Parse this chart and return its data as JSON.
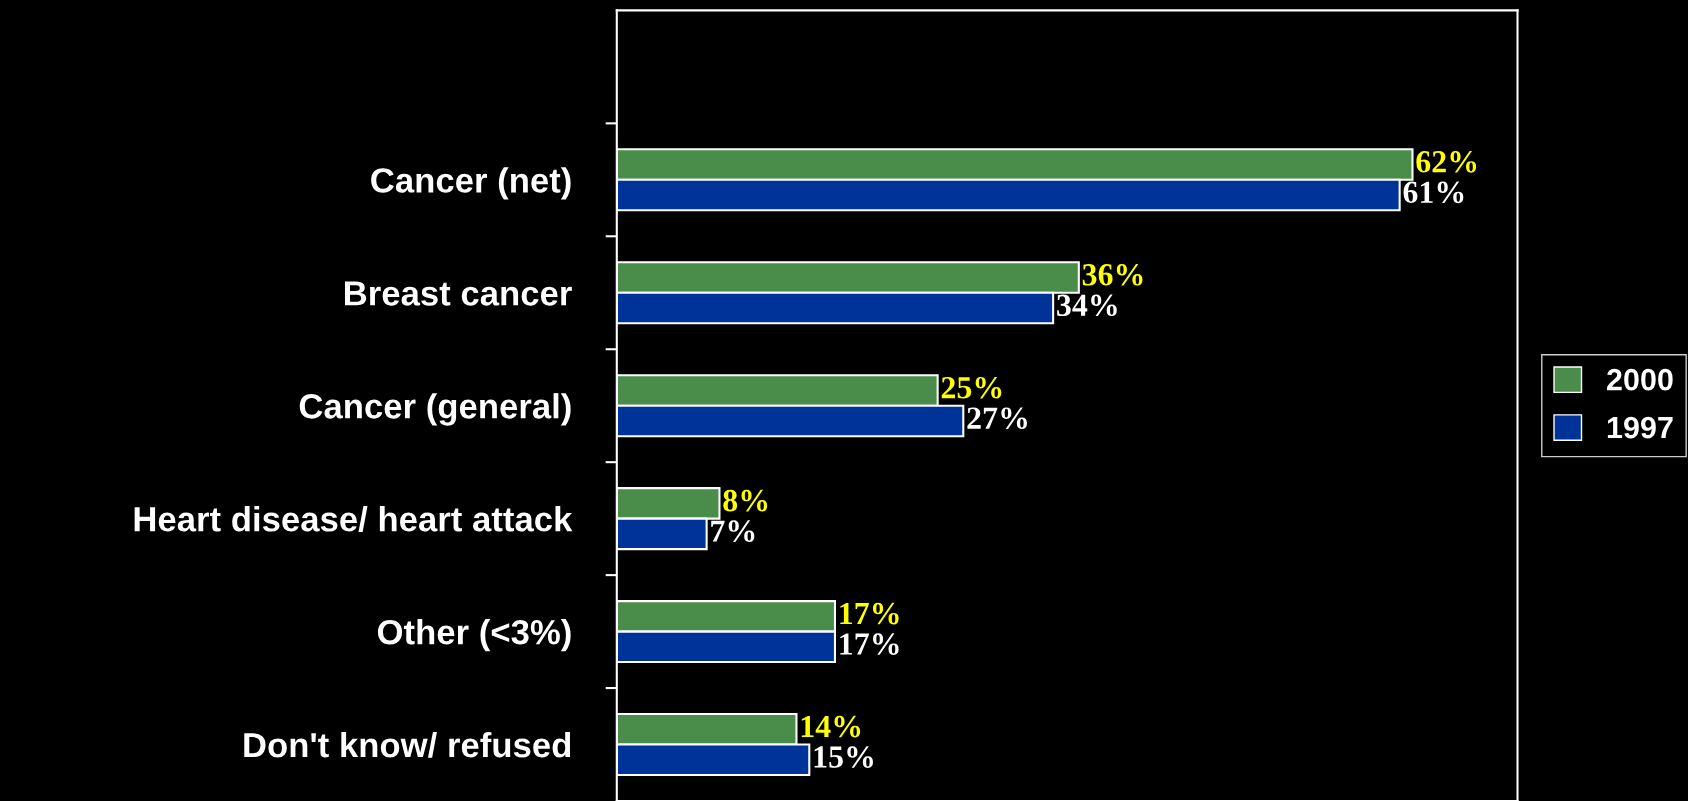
{
  "chart_data": {
    "type": "bar",
    "orientation": "horizontal",
    "categories": [
      null,
      "Cancer (net)",
      "Breast cancer",
      "Cancer (general)",
      "Heart disease/ heart attack",
      "Other (<3%)",
      "Don't know/ refused"
    ],
    "series": [
      {
        "name": "2000",
        "color": "#4a8c4a",
        "values": [
          null,
          62,
          36,
          25,
          8,
          17,
          14
        ],
        "value_labels": [
          null,
          "62%",
          "36%",
          "25%",
          "8%",
          "17%",
          "14%"
        ]
      },
      {
        "name": "1997",
        "color": "#003399",
        "values": [
          null,
          61,
          34,
          27,
          7,
          17,
          15
        ],
        "value_labels": [
          null,
          "61%",
          "34%",
          "27%",
          "7%",
          "17%",
          "15%"
        ]
      }
    ],
    "legend": "right",
    "tick_labels": "y",
    "grid": false
  }
}
